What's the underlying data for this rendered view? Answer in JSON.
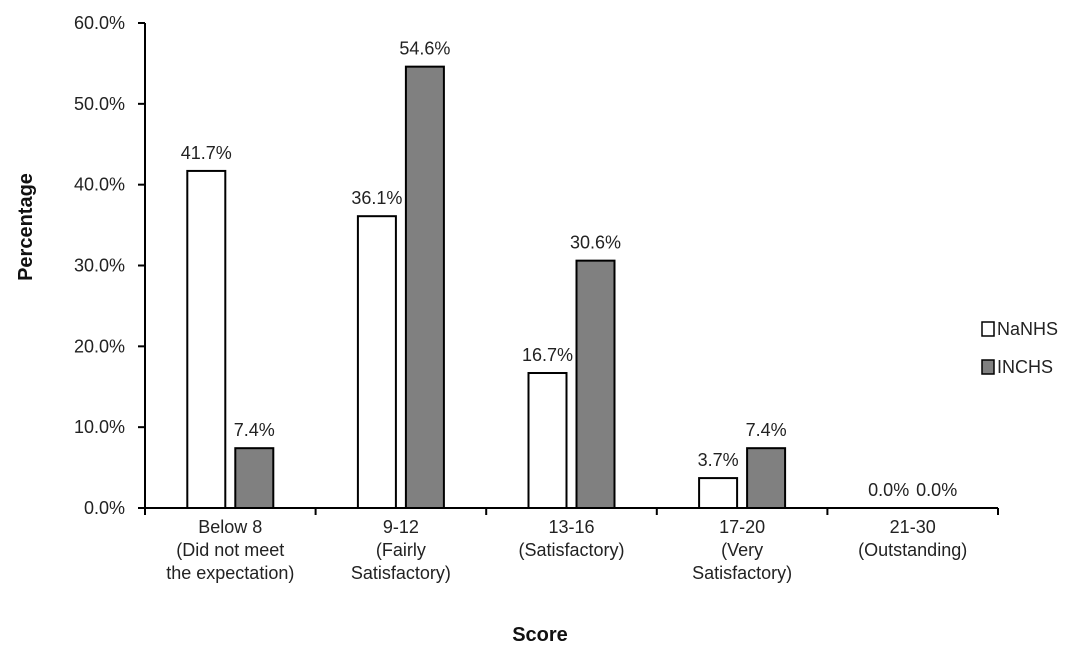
{
  "chart_data": {
    "type": "bar",
    "categories": [
      [
        "Below 8",
        "(Did not meet",
        "the expectation)"
      ],
      [
        "9-12",
        "(Fairly",
        "Satisfactory)"
      ],
      [
        "13-16",
        "(Satisfactory)"
      ],
      [
        "17-20",
        "(Very",
        "Satisfactory)"
      ],
      [
        "21-30",
        "(Outstanding)"
      ]
    ],
    "series": [
      {
        "name": "NaNHS",
        "color": "#ffffff",
        "values": [
          41.7,
          36.1,
          16.7,
          3.7,
          0.0
        ],
        "labels": [
          "41.7%",
          "36.1%",
          "16.7%",
          "3.7%",
          "0.0%"
        ]
      },
      {
        "name": "INCHS",
        "color": "#808080",
        "values": [
          7.4,
          54.6,
          30.6,
          7.4,
          0.0
        ],
        "labels": [
          "7.4%",
          "54.6%",
          "30.6%",
          "7.4%",
          "0.0%"
        ]
      }
    ],
    "title": "",
    "xlabel": "Score",
    "ylabel": "Percentage",
    "ylim": [
      0,
      60
    ],
    "yticks": [
      "0.0%",
      "10.0%",
      "20.0%",
      "30.0%",
      "40.0%",
      "50.0%",
      "60.0%"
    ],
    "grid": false,
    "legend_position": "right"
  }
}
